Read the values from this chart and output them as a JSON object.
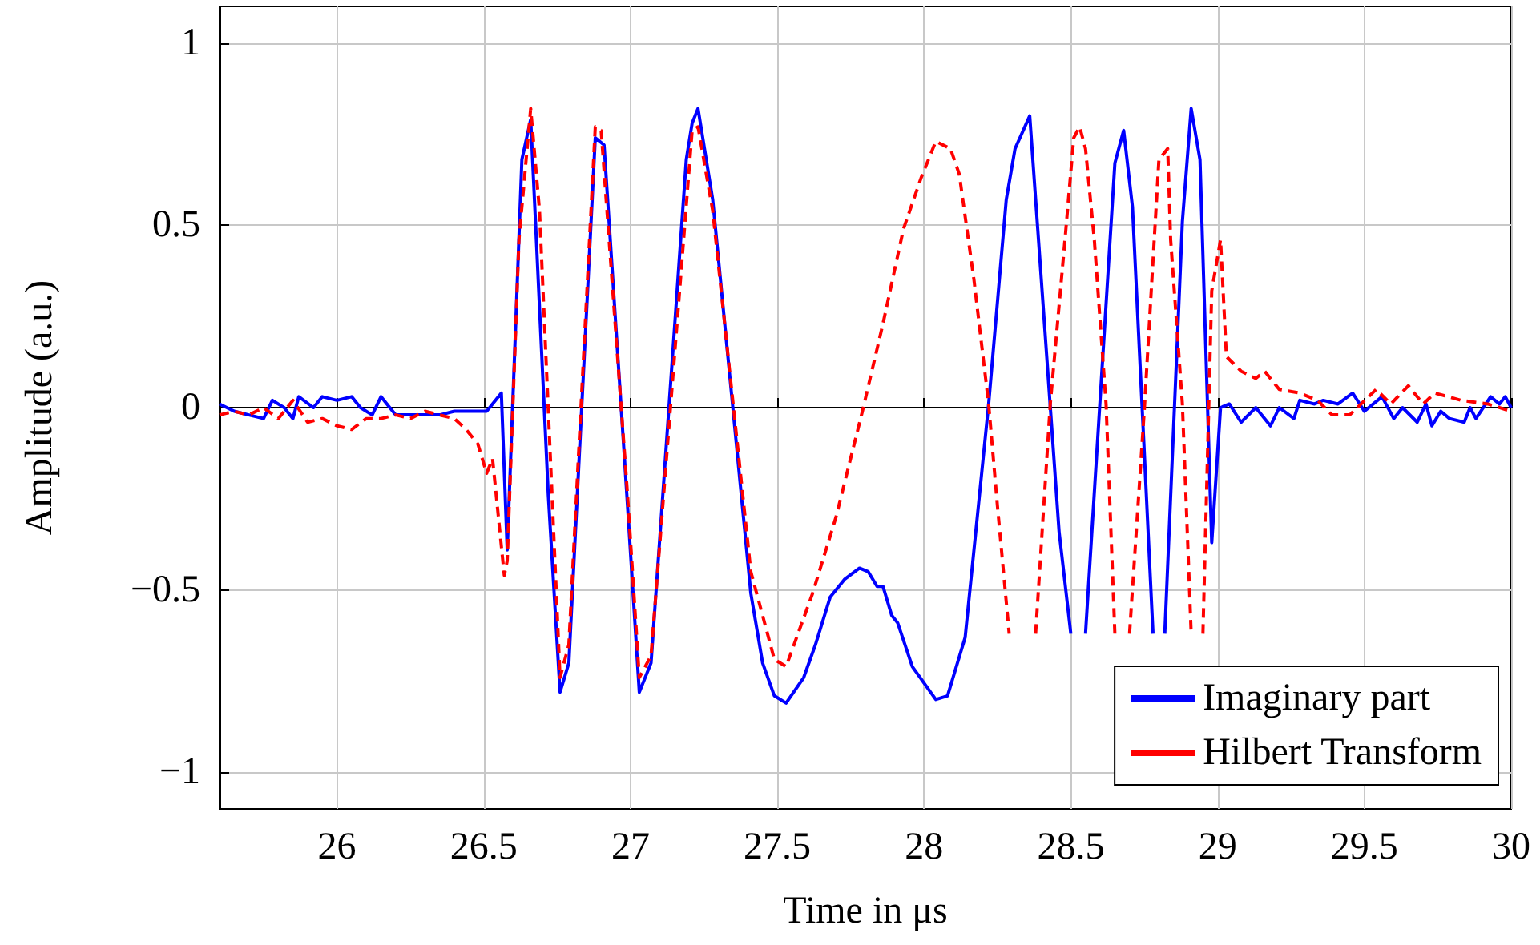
{
  "chart_data": {
    "type": "line",
    "xlabel": "Time in μs",
    "ylabel": "Amplitude (a.u.)",
    "xlim": [
      25.6,
      30
    ],
    "xticks": [
      26,
      26.5,
      27,
      27.5,
      28,
      28.5,
      29,
      29.5,
      30
    ],
    "ylim": [
      -1.1,
      1.1
    ],
    "yticks": [
      {
        "value": -1,
        "label": "−1"
      },
      {
        "value": -0.5,
        "label": "−0.5"
      },
      0,
      0.5,
      1
    ],
    "grid": true,
    "legend": "bottom right",
    "marker": "none",
    "series": [
      {
        "name": "Imaginary part",
        "color": "#0000ff",
        "line_style": "solid",
        "x": [
          25.6,
          25.65,
          25.7,
          25.75,
          25.78,
          25.82,
          25.85,
          25.87,
          25.92,
          25.95,
          26.0,
          26.05,
          26.08,
          26.12,
          26.15,
          26.2,
          26.25,
          26.3,
          26.35,
          26.4,
          26.45,
          26.51,
          26.56,
          26.58,
          26.63,
          26.66,
          26.72,
          26.76,
          26.79,
          26.88,
          26.91,
          26.99,
          27.03,
          27.07,
          27.19,
          27.21,
          27.23,
          27.28,
          27.41,
          27.45,
          27.49,
          27.53,
          27.59,
          27.63,
          27.68,
          27.73,
          27.78,
          27.81,
          27.84,
          27.86,
          27.89,
          27.91,
          27.96,
          28.04,
          28.08,
          28.14,
          28.22,
          28.28,
          28.31,
          28.36,
          28.46,
          28.5,
          28.52,
          28.55,
          28.65,
          28.68,
          28.71,
          28.78,
          28.8,
          28.82,
          28.88,
          28.91,
          28.94,
          28.98,
          29.01,
          29.04,
          29.08,
          29.13,
          29.18,
          29.21,
          29.26,
          29.28,
          29.33,
          29.36,
          29.41,
          29.46,
          29.5,
          29.56,
          29.6,
          29.63,
          29.68,
          29.71,
          29.73,
          29.76,
          29.79,
          29.84,
          29.86,
          29.88,
          29.93,
          29.96,
          29.98,
          30.0
        ],
        "values": [
          0.01,
          -0.01,
          -0.02,
          -0.03,
          0.02,
          0.0,
          -0.03,
          0.03,
          0.0,
          0.03,
          0.02,
          0.03,
          0.0,
          -0.02,
          0.03,
          -0.02,
          -0.02,
          -0.02,
          -0.02,
          -0.01,
          -0.01,
          -0.01,
          0.04,
          -0.39,
          0.68,
          0.79,
          -0.24,
          -0.78,
          -0.7,
          0.74,
          0.72,
          -0.27,
          -0.78,
          -0.7,
          0.68,
          0.78,
          0.82,
          0.57,
          -0.51,
          -0.7,
          -0.79,
          -0.81,
          -0.74,
          -0.65,
          -0.52,
          -0.47,
          -0.44,
          -0.45,
          -0.49,
          -0.49,
          -0.57,
          -0.59,
          -0.71,
          -0.8,
          -0.79,
          -0.63,
          0.01,
          0.57,
          0.71,
          0.8,
          -0.34,
          -0.62,
          null,
          -0.62,
          0.67,
          0.76,
          0.55,
          -0.62,
          null,
          -0.62,
          0.51,
          0.82,
          0.68,
          -0.37,
          0.0,
          0.01,
          -0.04,
          0.0,
          -0.05,
          0.0,
          -0.03,
          0.02,
          0.01,
          0.02,
          0.01,
          0.04,
          -0.01,
          0.03,
          -0.03,
          0.0,
          -0.04,
          0.01,
          -0.05,
          -0.01,
          -0.03,
          -0.04,
          0.0,
          -0.03,
          0.03,
          0.01,
          0.03,
          0.0
        ]
      },
      {
        "name": "Hilbert Transform",
        "color": "#ff0000",
        "line_style": "dashed",
        "x": [
          25.6,
          25.65,
          25.7,
          25.75,
          25.8,
          25.85,
          25.9,
          25.95,
          26.0,
          26.05,
          26.1,
          26.15,
          26.2,
          26.25,
          26.3,
          26.35,
          26.4,
          26.44,
          26.48,
          26.51,
          26.53,
          26.57,
          26.58,
          26.62,
          26.66,
          26.69,
          26.76,
          26.79,
          26.88,
          26.9,
          26.99,
          27.03,
          27.07,
          27.21,
          27.23,
          27.28,
          27.41,
          27.49,
          27.53,
          27.62,
          27.7,
          27.79,
          27.86,
          27.93,
          27.99,
          28.04,
          28.09,
          28.12,
          28.17,
          28.22,
          28.25,
          28.29,
          28.33,
          28.38,
          28.43,
          28.48,
          28.51,
          28.53,
          28.55,
          28.58,
          28.62,
          28.65,
          28.68,
          28.7,
          28.75,
          28.8,
          28.83,
          28.84,
          28.88,
          28.91,
          28.93,
          28.95,
          28.98,
          29.01,
          29.03,
          29.08,
          29.13,
          29.16,
          29.21,
          29.28,
          29.34,
          29.39,
          29.45,
          29.54,
          29.59,
          29.65,
          29.7,
          29.74,
          29.83,
          29.92,
          30.0
        ],
        "values": [
          -0.02,
          -0.01,
          -0.02,
          0.0,
          -0.03,
          0.02,
          -0.04,
          -0.03,
          -0.05,
          -0.06,
          -0.03,
          -0.03,
          -0.02,
          -0.03,
          -0.01,
          -0.02,
          -0.03,
          -0.06,
          -0.1,
          -0.18,
          -0.14,
          -0.46,
          -0.42,
          0.46,
          0.82,
          0.54,
          -0.74,
          -0.65,
          0.77,
          0.76,
          -0.24,
          -0.74,
          -0.68,
          0.76,
          0.77,
          0.54,
          -0.45,
          -0.69,
          -0.71,
          -0.51,
          -0.3,
          -0.01,
          0.23,
          0.49,
          0.63,
          0.73,
          0.71,
          0.64,
          0.35,
          0.01,
          -0.27,
          -0.62,
          null,
          -0.62,
          0.01,
          0.46,
          0.74,
          0.77,
          0.71,
          0.46,
          0.01,
          -0.62,
          null,
          -0.62,
          -0.01,
          0.68,
          0.71,
          0.46,
          0.01,
          -0.62,
          null,
          -0.62,
          0.32,
          0.46,
          0.14,
          0.1,
          0.08,
          0.1,
          0.05,
          0.04,
          0.02,
          -0.02,
          -0.02,
          0.05,
          0.01,
          0.06,
          0.01,
          0.04,
          0.02,
          0.01,
          -0.01
        ]
      }
    ]
  }
}
